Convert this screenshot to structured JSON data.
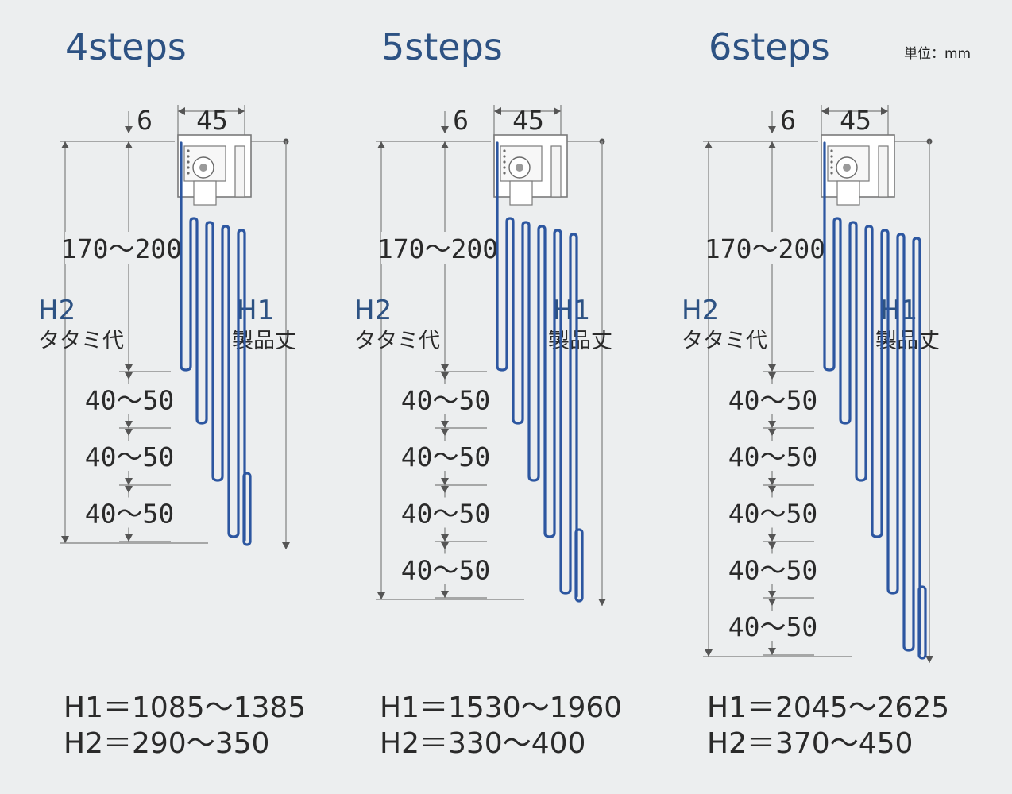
{
  "unit_label": "単位：mm",
  "colors": {
    "title": "#2d5283",
    "cord": "#2c56a0",
    "dim_line": "#8f8f8f",
    "background": "#eceeef"
  },
  "diagrams": [
    {
      "title": "4steps",
      "steps": 4,
      "top_gap": "6",
      "width": "45",
      "head_range": "170～200",
      "fold_range": "40～50",
      "h2_label": "H2",
      "h2_desc": "タタミ代",
      "h1_label": "H1",
      "h1_desc": "製品丈",
      "h1_formula": "H1＝1085～1385",
      "h2_formula": "H2＝290～350"
    },
    {
      "title": "5steps",
      "steps": 5,
      "top_gap": "6",
      "width": "45",
      "head_range": "170～200",
      "fold_range": "40～50",
      "h2_label": "H2",
      "h2_desc": "タタミ代",
      "h1_label": "H1",
      "h1_desc": "製品丈",
      "h1_formula": "H1＝1530～1960",
      "h2_formula": "H2＝330～400"
    },
    {
      "title": "6steps",
      "steps": 6,
      "top_gap": "6",
      "width": "45",
      "head_range": "170～200",
      "fold_range": "40～50",
      "h2_label": "H2",
      "h2_desc": "タタミ代",
      "h1_label": "H1",
      "h1_desc": "製品丈",
      "h1_formula": "H1＝2045～2625",
      "h2_formula": "H2＝370～450"
    }
  ]
}
